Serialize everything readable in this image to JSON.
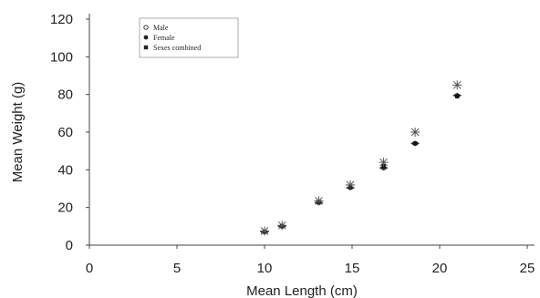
{
  "chart_data": {
    "type": "scatter",
    "title": "",
    "xlabel": "Mean Length (cm)",
    "ylabel": "Mean Weight (g)",
    "xlim": [
      0,
      25
    ],
    "ylim": [
      0,
      120
    ],
    "xticks": [
      "0",
      "5",
      "10",
      "15",
      "20",
      "25"
    ],
    "yticks": [
      "0",
      "20",
      "40",
      "60",
      "80",
      "100",
      "120"
    ],
    "grid": false,
    "legend_position": "top-left",
    "series": [
      {
        "name": "Male",
        "marker": "star",
        "color": "#555555",
        "x": [
          10.0,
          11.0,
          13.1,
          14.9,
          16.8,
          18.6,
          21.0
        ],
        "y": [
          7.5,
          10.5,
          23.5,
          32.0,
          44.0,
          60.0,
          85.0
        ]
      },
      {
        "name": "Female",
        "marker": "diamond",
        "color": "#333333",
        "x": [
          10.0,
          11.0,
          13.1,
          14.9,
          16.8,
          18.6,
          21.0
        ],
        "y": [
          7.0,
          10.0,
          22.5,
          30.5,
          41.0,
          54.0,
          79.5
        ]
      },
      {
        "name": "Sexes combined",
        "marker": "square",
        "color": "#111111",
        "x": [
          10.0,
          11.0,
          13.1,
          14.9,
          16.8,
          18.6,
          21.0
        ],
        "y": [
          7.2,
          10.2,
          23.0,
          31.0,
          42.0,
          54.0,
          79.0
        ]
      }
    ]
  }
}
